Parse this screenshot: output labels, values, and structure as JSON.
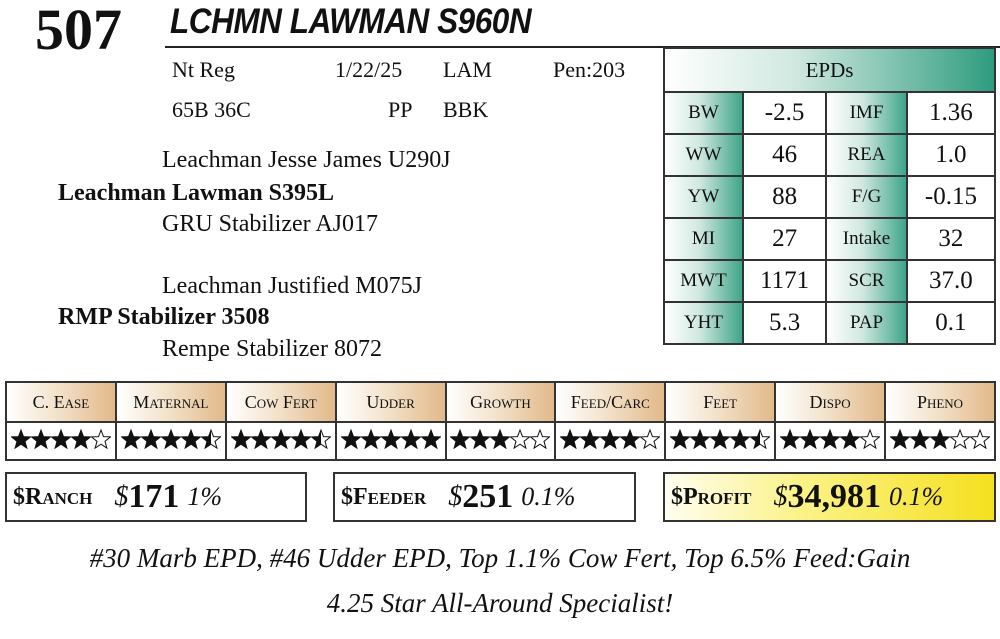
{
  "lot": "507",
  "name": "LCHMN LAWMAN S960N",
  "info": [
    [
      "Nt Reg",
      "1/22/25",
      "LAM",
      "Pen:203"
    ],
    [
      "65B 36C",
      "PP",
      "BBK"
    ]
  ],
  "pedigree": {
    "sire_sire": "Leachman Jesse James U290J",
    "sire": "Leachman Lawman S395L",
    "sire_dam": "GRU Stabilizer AJ017",
    "dam_sire": "Leachman Justified M075J",
    "dam": "RMP Stabilizer 3508",
    "dam_dam": "Rempe Stabilizer 8072"
  },
  "epds": {
    "title": "EPDs",
    "rows": [
      [
        "BW",
        "-2.5",
        "IMF",
        "1.36"
      ],
      [
        "WW",
        "46",
        "REA",
        "1.0"
      ],
      [
        "YW",
        "88",
        "F/G",
        "-0.15"
      ],
      [
        "MI",
        "27",
        "Intake",
        "32"
      ],
      [
        "MWT",
        "1171",
        "SCR",
        "37.0"
      ],
      [
        "YHT",
        "5.3",
        "PAP",
        "0.1"
      ]
    ]
  },
  "ratings": {
    "categories": [
      "C. Ease",
      "Maternal",
      "Cow Fert",
      "Udder",
      "Growth",
      "Feed/Carc",
      "Feet",
      "Dispo",
      "Pheno"
    ],
    "stars": [
      4,
      4.5,
      4.5,
      5,
      3,
      4,
      4.5,
      4,
      3
    ]
  },
  "indexes": [
    {
      "label": "$Ranch",
      "currency": "$",
      "value": "171",
      "percentile": "1%"
    },
    {
      "label": "$Feeder",
      "currency": "$",
      "value": "251",
      "percentile": "0.1%"
    },
    {
      "label": "$Profit",
      "currency": "$",
      "value": "34,981",
      "percentile": "0.1%"
    }
  ],
  "notes": [
    "#30 Marb EPD, #46 Udder EPD, Top 1.1% Cow Fert, Top 6.5% Feed:Gain",
    "4.25 Star All-Around Specialist!"
  ]
}
